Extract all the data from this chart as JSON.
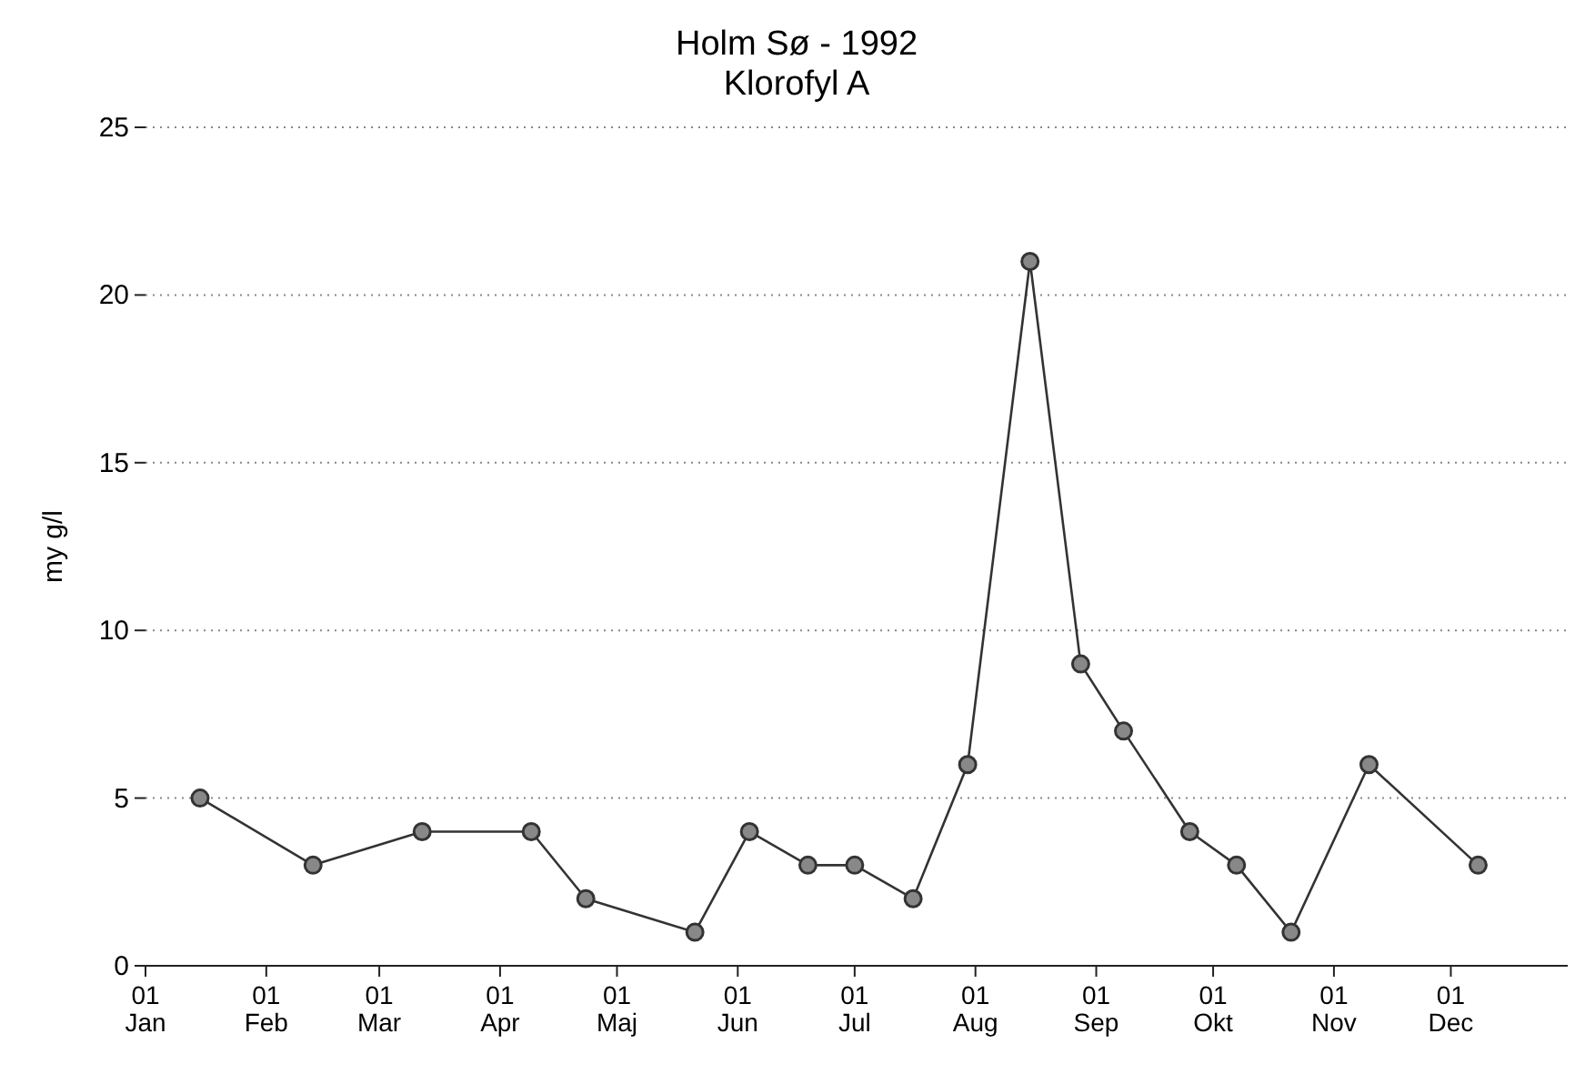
{
  "chart_data": {
    "type": "line",
    "title": "Holm Sø - 1992",
    "subtitle": "Klorofyl A",
    "ylabel": "my g/l",
    "x": [
      "1992-01-15",
      "1992-02-13",
      "1992-03-12",
      "1992-04-09",
      "1992-04-23",
      "1992-05-21",
      "1992-06-04",
      "1992-06-19",
      "1992-07-01",
      "1992-07-16",
      "1992-07-30",
      "1992-08-15",
      "1992-08-28",
      "1992-09-08",
      "1992-09-25",
      "1992-10-07",
      "1992-10-21",
      "1992-11-10",
      "1992-12-08"
    ],
    "series": [
      {
        "color": "#333333",
        "values": [
          5,
          3,
          4,
          4,
          2,
          1,
          4,
          3,
          3,
          2,
          6,
          21,
          9,
          7,
          4,
          3,
          1,
          6,
          3
        ]
      }
    ],
    "xlim": [
      "1992-01-01",
      "1992-12-31"
    ],
    "xticks": [
      {
        "value": "1992-01-01",
        "label": "01 Jan"
      },
      {
        "value": "1992-02-01",
        "label": "01 Feb"
      },
      {
        "value": "1992-03-01",
        "label": "01 Mar"
      },
      {
        "value": "1992-04-01",
        "label": "01 Apr"
      },
      {
        "value": "1992-05-01",
        "label": "01 Maj"
      },
      {
        "value": "1992-06-01",
        "label": "01 Jun"
      },
      {
        "value": "1992-07-01",
        "label": "01 Jul"
      },
      {
        "value": "1992-08-01",
        "label": "01 Aug"
      },
      {
        "value": "1992-09-01",
        "label": "01 Sep"
      },
      {
        "value": "1992-10-01",
        "label": "01 Okt"
      },
      {
        "value": "1992-11-01",
        "label": "01 Nov"
      },
      {
        "value": "1992-12-01",
        "label": "01 Dec"
      }
    ],
    "ylim": [
      0,
      25
    ],
    "yticks": [
      0,
      5,
      10,
      15,
      20,
      25
    ],
    "grid": "y",
    "marker": "circle",
    "line_style": "solid"
  }
}
